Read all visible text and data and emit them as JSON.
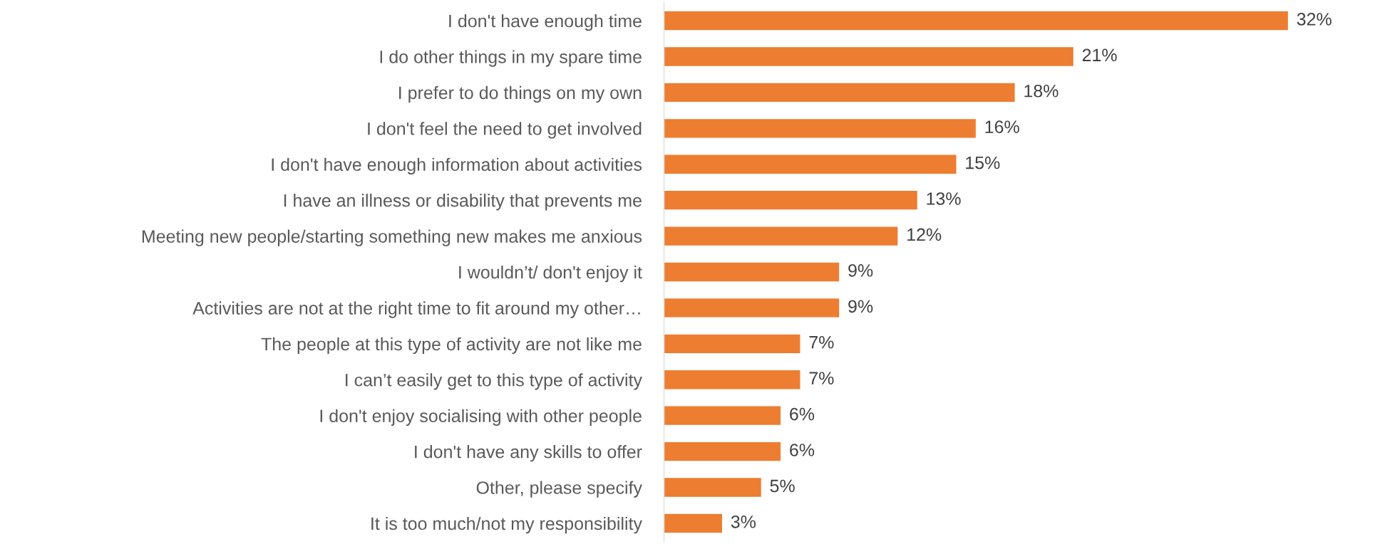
{
  "chart_data": {
    "type": "bar",
    "orientation": "horizontal",
    "categories": [
      "I don't have enough time",
      "I do other things in my spare time",
      "I prefer to do things on my own",
      "I don't feel the need to get involved",
      "I don't have enough information about activities",
      "I have an illness or disability that prevents me",
      "Meeting new people/starting something new makes me anxious",
      "I wouldn’t/ don't enjoy it",
      "Activities are not at the right time to fit around my other…",
      "The people at this type of activity are not like me",
      "I can’t easily get to this type of activity",
      "I don't enjoy socialising with other people",
      "I don't have any skills to offer",
      "Other, please specify",
      "It is too much/not my responsibility"
    ],
    "values": [
      32,
      21,
      18,
      16,
      15,
      13,
      12,
      9,
      9,
      7,
      7,
      6,
      6,
      5,
      3
    ],
    "value_labels": [
      "32%",
      "21%",
      "18%",
      "16%",
      "15%",
      "13%",
      "12%",
      "9%",
      "9%",
      "7%",
      "7%",
      "6%",
      "6%",
      "5%",
      "3%"
    ],
    "color": "#ed7d31",
    "tick_labels": "y",
    "grid": false,
    "legend": false
  }
}
